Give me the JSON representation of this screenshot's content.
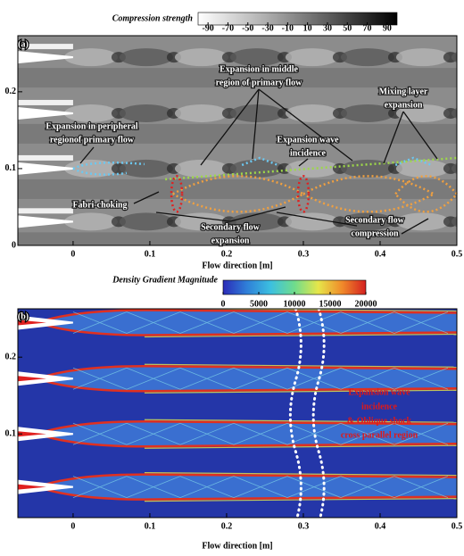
{
  "chart_data": [
    {
      "type": "contour",
      "panel_label": "(a)",
      "xlabel": "Flow direction [m]",
      "xlim": [
        -0.072,
        0.5
      ],
      "xticks": [
        0,
        0.1,
        0.2,
        0.3,
        0.4,
        0.5
      ],
      "ylim": [
        0,
        0.273
      ],
      "yticks": [
        0,
        0.1,
        0.2
      ],
      "colorbar": {
        "label": "Compression strength",
        "lim": [
          -100,
          100
        ],
        "ticks": [
          -90,
          -70,
          -50,
          -30,
          -10,
          10,
          30,
          50,
          70,
          90
        ],
        "colors": [
          "#ffffff",
          "#b0b0b0",
          "#5a5a5a",
          "#000000"
        ]
      },
      "annotation_color": "#ffffff",
      "annotations": [
        {
          "lines": [
            "Expansion in middle",
            "region of primary flow"
          ]
        },
        {
          "lines": [
            "Mixing layer",
            "expansion"
          ]
        },
        {
          "lines": [
            "Expansion in peripheral",
            "regionof primary flow"
          ]
        },
        {
          "lines": [
            "Expansion wave",
            "incidence"
          ]
        },
        {
          "lines": [
            "Fabri-choking"
          ]
        },
        {
          "lines": [
            "Secondary flow",
            "expansion"
          ]
        },
        {
          "lines": [
            "Secondary flow",
            "compression"
          ]
        }
      ]
    },
    {
      "type": "contour",
      "panel_label": "(b)",
      "xlabel": "Flow direction [m]",
      "xlim": [
        -0.072,
        0.5
      ],
      "xticks": [
        0,
        0.1,
        0.2,
        0.3,
        0.4,
        0.5
      ],
      "ylim": [
        -0.009,
        0.263
      ],
      "yticks": [
        0.1,
        0.2
      ],
      "colorbar": {
        "label": "Density Gradient Magnitude",
        "lim": [
          0,
          20000
        ],
        "ticks": [
          0,
          5000,
          10000,
          15000,
          20000
        ],
        "colors": [
          "#2b2bb8",
          "#2f7fd8",
          "#3cc0e0",
          "#6fdc8c",
          "#e6e64a",
          "#f08a2a",
          "#d42020"
        ]
      },
      "annotation_color": "#e01818",
      "annotations": [
        {
          "lines": [
            "Expansion wave",
            "incidence",
            "& Oblique shock",
            "cross parallel region"
          ]
        }
      ]
    }
  ]
}
